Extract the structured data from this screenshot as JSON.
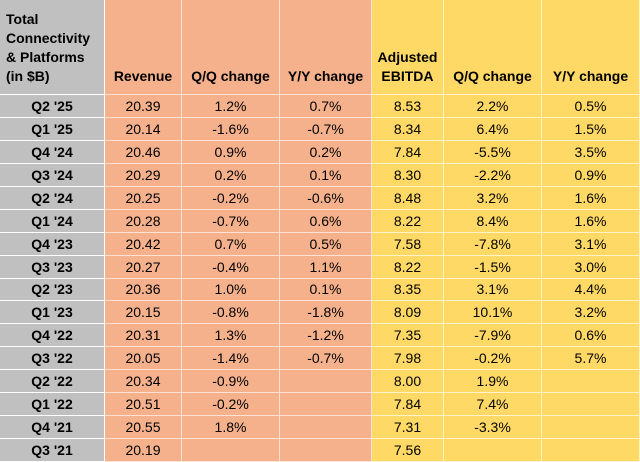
{
  "table": {
    "header": [
      [
        "Total",
        "Connectivity",
        "& Platforms",
        "(in $B)"
      ],
      [
        "Revenue"
      ],
      [
        "Q/Q change"
      ],
      [
        "Y/Y change"
      ],
      [
        "Adjusted",
        "EBITDA"
      ],
      [
        "Q/Q change"
      ],
      [
        "Y/Y change"
      ]
    ],
    "rows": [
      [
        "Q2 '25",
        "20.39",
        "1.2%",
        "0.7%",
        "8.53",
        "2.2%",
        "0.5%"
      ],
      [
        "Q1 '25",
        "20.14",
        "-1.6%",
        "-0.7%",
        "8.34",
        "6.4%",
        "1.5%"
      ],
      [
        "Q4 '24",
        "20.46",
        "0.9%",
        "0.2%",
        "7.84",
        "-5.5%",
        "3.5%"
      ],
      [
        "Q3 '24",
        "20.29",
        "0.2%",
        "0.1%",
        "8.30",
        "-2.2%",
        "0.9%"
      ],
      [
        "Q2 '24",
        "20.25",
        "-0.2%",
        "-0.6%",
        "8.48",
        "3.2%",
        "1.6%"
      ],
      [
        "Q1 '24",
        "20.28",
        "-0.7%",
        "0.6%",
        "8.22",
        "8.4%",
        "1.6%"
      ],
      [
        "Q4 '23",
        "20.42",
        "0.7%",
        "0.5%",
        "7.58",
        "-7.8%",
        "3.1%"
      ],
      [
        "Q3 '23",
        "20.27",
        "-0.4%",
        "1.1%",
        "8.22",
        "-1.5%",
        "3.0%"
      ],
      [
        "Q2 '23",
        "20.36",
        "1.0%",
        "0.1%",
        "8.35",
        "3.1%",
        "4.4%"
      ],
      [
        "Q1 '23",
        "20.15",
        "-0.8%",
        "-1.8%",
        "8.09",
        "10.1%",
        "3.2%"
      ],
      [
        "Q4 '22",
        "20.31",
        "1.3%",
        "-1.2%",
        "7.35",
        "-7.9%",
        "0.6%"
      ],
      [
        "Q3 '22",
        "20.05",
        "-1.4%",
        "-0.7%",
        "7.98",
        "-0.2%",
        "5.7%"
      ],
      [
        "Q2 '22",
        "20.34",
        "-0.9%",
        null,
        "8.00",
        "1.9%",
        null
      ],
      [
        "Q1 '22",
        "20.51",
        "-0.2%",
        null,
        "7.84",
        "7.4%",
        null
      ],
      [
        "Q4 '21",
        "20.55",
        "1.8%",
        null,
        "7.31",
        "-3.3%",
        null
      ],
      [
        "Q3 '21",
        "20.19",
        null,
        null,
        "7.56",
        null,
        null
      ]
    ]
  }
}
